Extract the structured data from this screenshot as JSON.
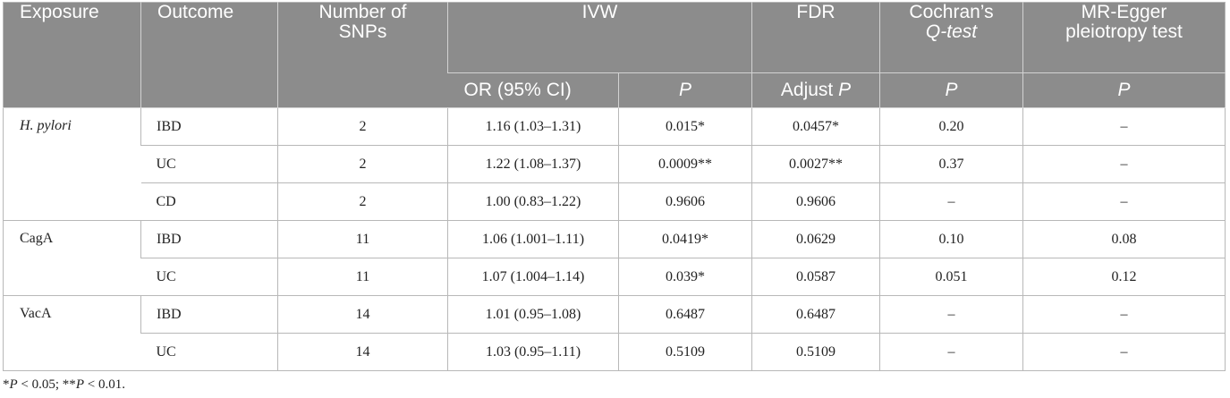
{
  "header": {
    "exposure": "Exposure",
    "outcome": "Outcome",
    "nsnps_line1": "Number of",
    "nsnps_line2": "SNPs",
    "ivw": "IVW",
    "fdr": "FDR",
    "cochran_line1": "Cochran’s",
    "cochran_line2": "Q-test",
    "egger_line1": "MR-Egger",
    "egger_line2": "pleiotropy test",
    "or_ci": "OR (95% CI)",
    "p": "P",
    "adjust": "Adjust",
    "adjust_p": "P",
    "cochran_p": "P",
    "egger_p": "P"
  },
  "groups": [
    {
      "exposure": "H. pylori",
      "italic": true,
      "rows": [
        {
          "outcome": "IBD",
          "snps": "2",
          "or": "1.16 (1.03–1.31)",
          "p": "0.015*",
          "fdr": "0.0457*",
          "q": "0.20",
          "egger": "–"
        },
        {
          "outcome": "UC",
          "snps": "2",
          "or": "1.22 (1.08–1.37)",
          "p": "0.0009**",
          "fdr": "0.0027**",
          "q": "0.37",
          "egger": "–"
        },
        {
          "outcome": "CD",
          "snps": "2",
          "or": "1.00 (0.83–1.22)",
          "p": "0.9606",
          "fdr": "0.9606",
          "q": "–",
          "egger": "–"
        }
      ]
    },
    {
      "exposure": "CagA",
      "italic": false,
      "rows": [
        {
          "outcome": "IBD",
          "snps": "11",
          "or": "1.06 (1.001–1.11)",
          "p": "0.0419*",
          "fdr": "0.0629",
          "q": "0.10",
          "egger": "0.08"
        },
        {
          "outcome": "UC",
          "snps": "11",
          "or": "1.07 (1.004–1.14)",
          "p": "0.039*",
          "fdr": "0.0587",
          "q": "0.051",
          "egger": "0.12"
        }
      ]
    },
    {
      "exposure": "VacA",
      "italic": false,
      "rows": [
        {
          "outcome": "IBD",
          "snps": "14",
          "or": "1.01 (0.95–1.08)",
          "p": "0.6487",
          "fdr": "0.6487",
          "q": "–",
          "egger": "–"
        },
        {
          "outcome": "UC",
          "snps": "14",
          "or": "1.03 (0.95–1.11)",
          "p": "0.5109",
          "fdr": "0.5109",
          "q": "–",
          "egger": "–"
        }
      ]
    }
  ],
  "footnote": {
    "star1": "*",
    "p1": "P",
    "t1": " < 0.05; **",
    "p2": "P",
    "t2": " < 0.01."
  }
}
